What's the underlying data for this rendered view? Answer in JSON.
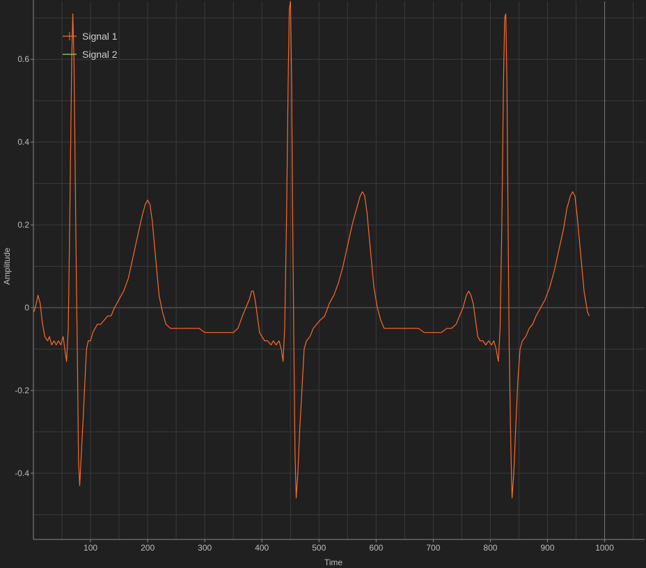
{
  "chart_data": {
    "type": "line",
    "xlabel": "Time",
    "ylabel": "Amplitude",
    "xlim": [
      0,
      1070
    ],
    "ylim": [
      -0.56,
      0.74
    ],
    "x_ticks": [
      100,
      200,
      300,
      400,
      500,
      600,
      700,
      800,
      900,
      1000
    ],
    "y_ticks": [
      -0.4,
      -0.2,
      0,
      0.2,
      0.4,
      0.6
    ],
    "y_tick_labels": [
      "-0.4",
      "-0.2",
      "0",
      "0.2",
      "0.4",
      "0.6"
    ],
    "grid": true,
    "legend_position": "top-left",
    "colors": {
      "background": "#202020",
      "grid": "#3a3a3a",
      "zero_line": "#6a6a6a",
      "axis": "#8a8a8a"
    },
    "series": [
      {
        "name": "Signal 1",
        "color": "#ff6a2a",
        "points": [
          [
            1,
            -0.01
          ],
          [
            5,
            0.01
          ],
          [
            8,
            0.03
          ],
          [
            12,
            0.01
          ],
          [
            16,
            -0.04
          ],
          [
            20,
            -0.07
          ],
          [
            25,
            -0.08
          ],
          [
            28,
            -0.07
          ],
          [
            32,
            -0.09
          ],
          [
            36,
            -0.08
          ],
          [
            40,
            -0.09
          ],
          [
            44,
            -0.08
          ],
          [
            48,
            -0.09
          ],
          [
            52,
            -0.07
          ],
          [
            55,
            -0.1
          ],
          [
            58,
            -0.13
          ],
          [
            61,
            -0.05
          ],
          [
            64,
            0.25
          ],
          [
            67,
            0.6
          ],
          [
            69,
            0.71
          ],
          [
            71,
            0.6
          ],
          [
            73,
            0.35
          ],
          [
            75,
            0.1
          ],
          [
            77,
            -0.12
          ],
          [
            79,
            -0.37
          ],
          [
            81,
            -0.43
          ],
          [
            84,
            -0.35
          ],
          [
            87,
            -0.27
          ],
          [
            90,
            -0.18
          ],
          [
            93,
            -0.1
          ],
          [
            96,
            -0.08
          ],
          [
            100,
            -0.08
          ],
          [
            104,
            -0.06
          ],
          [
            108,
            -0.05
          ],
          [
            112,
            -0.04
          ],
          [
            118,
            -0.04
          ],
          [
            124,
            -0.03
          ],
          [
            130,
            -0.02
          ],
          [
            136,
            -0.02
          ],
          [
            142,
            0.0
          ],
          [
            150,
            0.02
          ],
          [
            158,
            0.04
          ],
          [
            166,
            0.07
          ],
          [
            174,
            0.12
          ],
          [
            182,
            0.17
          ],
          [
            190,
            0.22
          ],
          [
            196,
            0.25
          ],
          [
            200,
            0.26
          ],
          [
            204,
            0.25
          ],
          [
            208,
            0.21
          ],
          [
            214,
            0.12
          ],
          [
            220,
            0.03
          ],
          [
            226,
            -0.01
          ],
          [
            232,
            -0.04
          ],
          [
            240,
            -0.05
          ],
          [
            250,
            -0.05
          ],
          [
            260,
            -0.05
          ],
          [
            270,
            -0.05
          ],
          [
            280,
            -0.05
          ],
          [
            290,
            -0.05
          ],
          [
            300,
            -0.06
          ],
          [
            310,
            -0.06
          ],
          [
            320,
            -0.06
          ],
          [
            330,
            -0.06
          ],
          [
            340,
            -0.06
          ],
          [
            350,
            -0.06
          ],
          [
            358,
            -0.05
          ],
          [
            366,
            -0.02
          ],
          [
            372,
            0.0
          ],
          [
            378,
            0.02
          ],
          [
            382,
            0.04
          ],
          [
            385,
            0.04
          ],
          [
            388,
            0.02
          ],
          [
            392,
            -0.02
          ],
          [
            396,
            -0.06
          ],
          [
            400,
            -0.07
          ],
          [
            405,
            -0.08
          ],
          [
            410,
            -0.08
          ],
          [
            416,
            -0.09
          ],
          [
            420,
            -0.08
          ],
          [
            425,
            -0.09
          ],
          [
            430,
            -0.08
          ],
          [
            434,
            -0.1
          ],
          [
            437,
            -0.13
          ],
          [
            440,
            -0.05
          ],
          [
            443,
            0.2
          ],
          [
            446,
            0.55
          ],
          [
            448,
            0.72
          ],
          [
            450,
            0.74
          ],
          [
            452,
            0.55
          ],
          [
            454,
            0.2
          ],
          [
            456,
            -0.1
          ],
          [
            458,
            -0.35
          ],
          [
            460,
            -0.46
          ],
          [
            463,
            -0.4
          ],
          [
            466,
            -0.3
          ],
          [
            470,
            -0.2
          ],
          [
            474,
            -0.1
          ],
          [
            478,
            -0.08
          ],
          [
            484,
            -0.07
          ],
          [
            490,
            -0.05
          ],
          [
            496,
            -0.04
          ],
          [
            502,
            -0.03
          ],
          [
            510,
            -0.02
          ],
          [
            518,
            0.01
          ],
          [
            526,
            0.03
          ],
          [
            534,
            0.06
          ],
          [
            542,
            0.1
          ],
          [
            550,
            0.15
          ],
          [
            558,
            0.2
          ],
          [
            566,
            0.24
          ],
          [
            572,
            0.27
          ],
          [
            576,
            0.28
          ],
          [
            580,
            0.27
          ],
          [
            584,
            0.23
          ],
          [
            590,
            0.14
          ],
          [
            596,
            0.05
          ],
          [
            602,
            0.0
          ],
          [
            608,
            -0.03
          ],
          [
            614,
            -0.05
          ],
          [
            624,
            -0.05
          ],
          [
            634,
            -0.05
          ],
          [
            644,
            -0.05
          ],
          [
            654,
            -0.05
          ],
          [
            664,
            -0.05
          ],
          [
            674,
            -0.05
          ],
          [
            684,
            -0.06
          ],
          [
            694,
            -0.06
          ],
          [
            704,
            -0.06
          ],
          [
            714,
            -0.06
          ],
          [
            724,
            -0.05
          ],
          [
            732,
            -0.05
          ],
          [
            740,
            -0.04
          ],
          [
            746,
            -0.02
          ],
          [
            752,
            0.0
          ],
          [
            758,
            0.03
          ],
          [
            762,
            0.04
          ],
          [
            766,
            0.03
          ],
          [
            770,
            0.01
          ],
          [
            774,
            -0.03
          ],
          [
            778,
            -0.07
          ],
          [
            782,
            -0.08
          ],
          [
            787,
            -0.08
          ],
          [
            792,
            -0.09
          ],
          [
            797,
            -0.08
          ],
          [
            802,
            -0.09
          ],
          [
            806,
            -0.08
          ],
          [
            810,
            -0.1
          ],
          [
            814,
            -0.13
          ],
          [
            817,
            -0.05
          ],
          [
            820,
            0.2
          ],
          [
            823,
            0.55
          ],
          [
            825,
            0.7
          ],
          [
            827,
            0.71
          ],
          [
            829,
            0.55
          ],
          [
            831,
            0.2
          ],
          [
            833,
            -0.1
          ],
          [
            836,
            -0.35
          ],
          [
            838,
            -0.46
          ],
          [
            841,
            -0.4
          ],
          [
            844,
            -0.3
          ],
          [
            848,
            -0.18
          ],
          [
            852,
            -0.1
          ],
          [
            856,
            -0.08
          ],
          [
            862,
            -0.07
          ],
          [
            868,
            -0.05
          ],
          [
            874,
            -0.04
          ],
          [
            880,
            -0.02
          ],
          [
            888,
            0.0
          ],
          [
            896,
            0.02
          ],
          [
            904,
            0.05
          ],
          [
            912,
            0.09
          ],
          [
            920,
            0.14
          ],
          [
            928,
            0.19
          ],
          [
            934,
            0.24
          ],
          [
            940,
            0.27
          ],
          [
            944,
            0.28
          ],
          [
            948,
            0.27
          ],
          [
            952,
            0.22
          ],
          [
            958,
            0.13
          ],
          [
            964,
            0.04
          ],
          [
            970,
            -0.01
          ],
          [
            973,
            -0.02
          ]
        ]
      },
      {
        "name": "Signal 2",
        "color": "#9adf4a",
        "points": []
      }
    ]
  }
}
